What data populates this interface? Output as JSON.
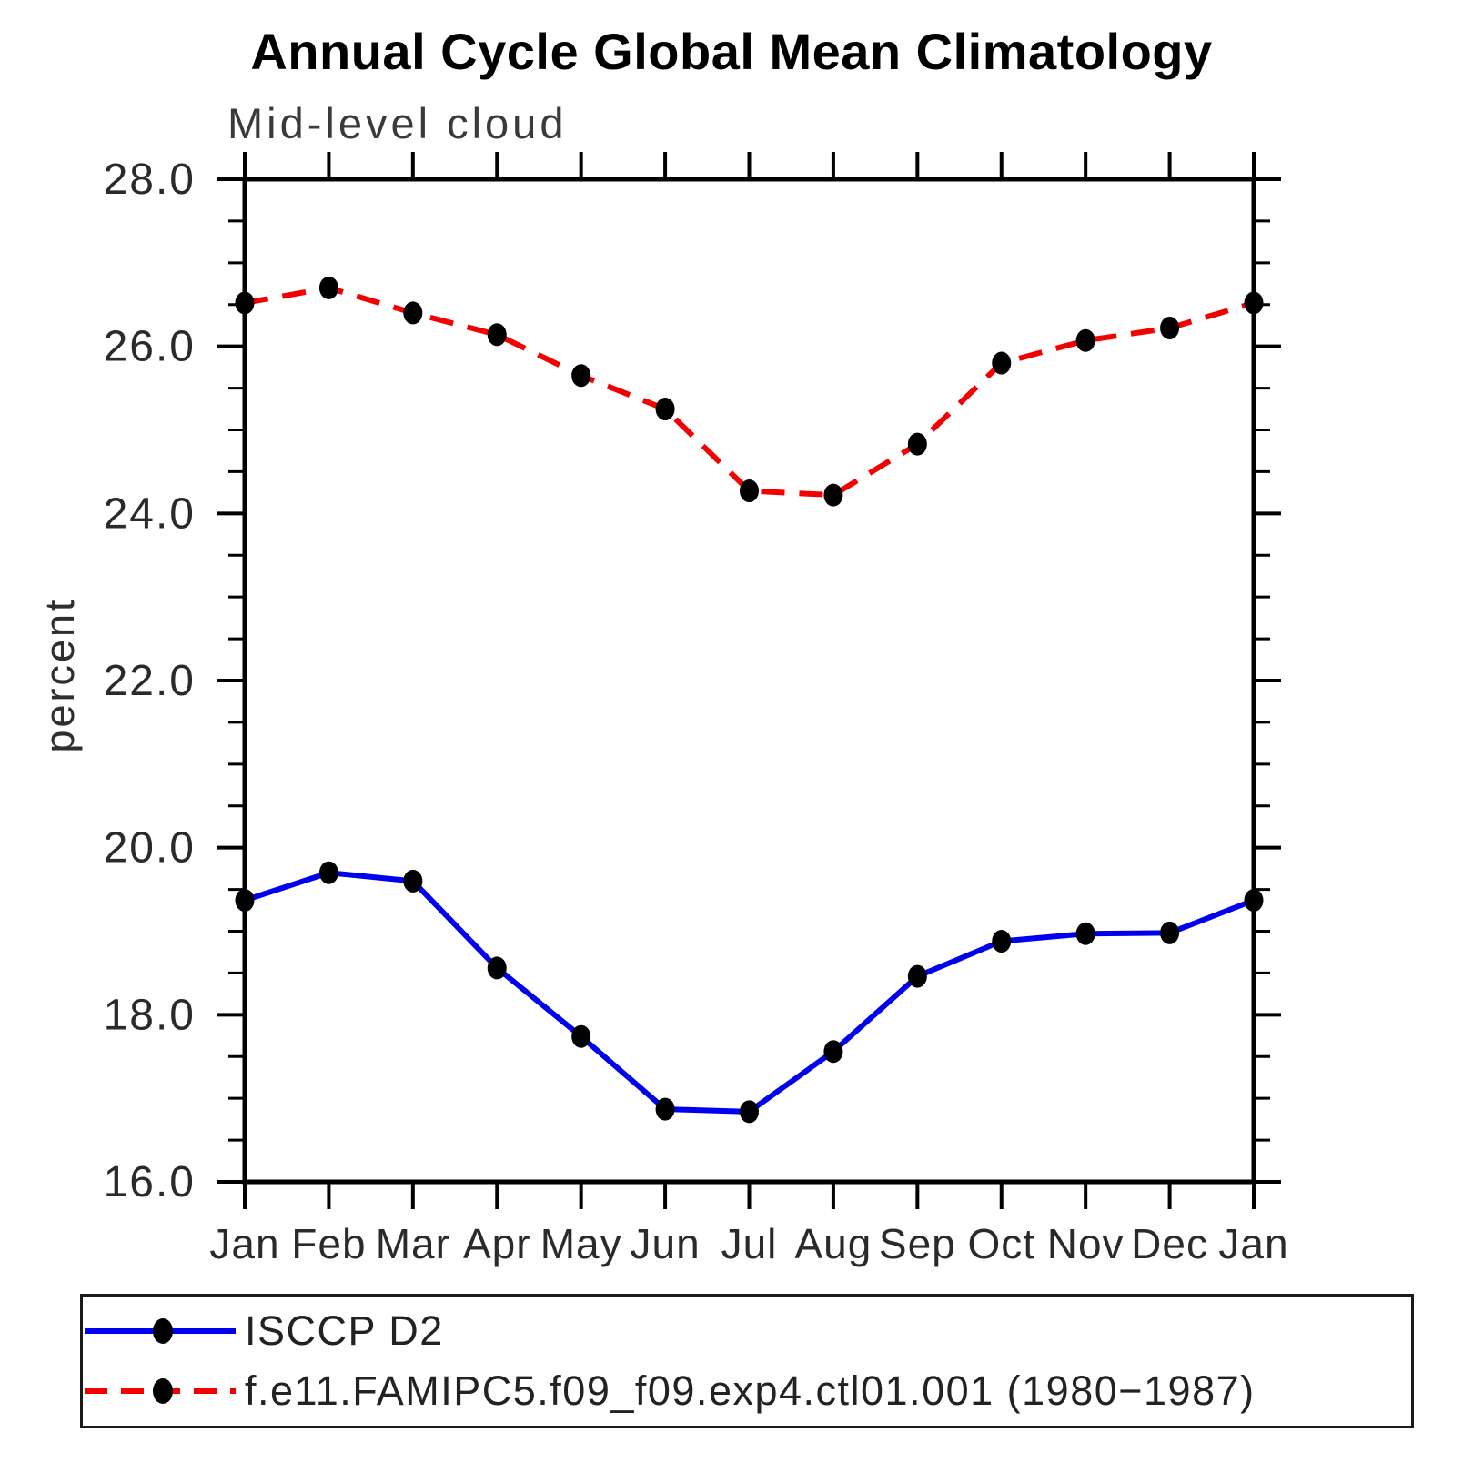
{
  "header": {
    "title": "Annual Cycle Global Mean Climatology",
    "subtitle": "Mid-level cloud"
  },
  "chart_data": {
    "type": "line",
    "title": "Annual Cycle Global Mean Climatology",
    "subtitle": "Mid-level cloud",
    "xlabel": "",
    "ylabel": "percent",
    "categories": [
      "Jan",
      "Feb",
      "Mar",
      "Apr",
      "May",
      "Jun",
      "Jul",
      "Aug",
      "Sep",
      "Oct",
      "Nov",
      "Dec",
      "Jan"
    ],
    "ylim": [
      16.0,
      28.0
    ],
    "y_major_step": 2.0,
    "y_minor_step": 0.5,
    "y_major_ticks": [
      16.0,
      18.0,
      20.0,
      22.0,
      24.0,
      26.0,
      28.0
    ],
    "y_tick_labels": [
      "16.0",
      "18.0",
      "20.0",
      "22.0",
      "24.0",
      "26.0",
      "28.0"
    ],
    "grid": false,
    "legend_position": "bottom",
    "frame_color": "#000000",
    "series": [
      {
        "name": "ISCCP D2",
        "color": "#0000ee",
        "style": "solid",
        "marker": "circle",
        "marker_color": "#000000",
        "values": [
          19.37,
          19.7,
          19.6,
          18.56,
          17.74,
          16.87,
          16.84,
          17.56,
          18.46,
          18.88,
          18.97,
          18.98,
          19.37
        ]
      },
      {
        "name": "f.e11.FAMIPC5.f09_f09.exp4.ctl01.001 (1980−1987)",
        "color": "#f50000",
        "style": "dashed",
        "marker": "circle",
        "marker_color": "#000000",
        "values": [
          26.52,
          26.7,
          26.4,
          26.14,
          25.65,
          25.25,
          24.27,
          24.22,
          24.83,
          25.8,
          26.07,
          26.22,
          26.52
        ]
      }
    ]
  }
}
